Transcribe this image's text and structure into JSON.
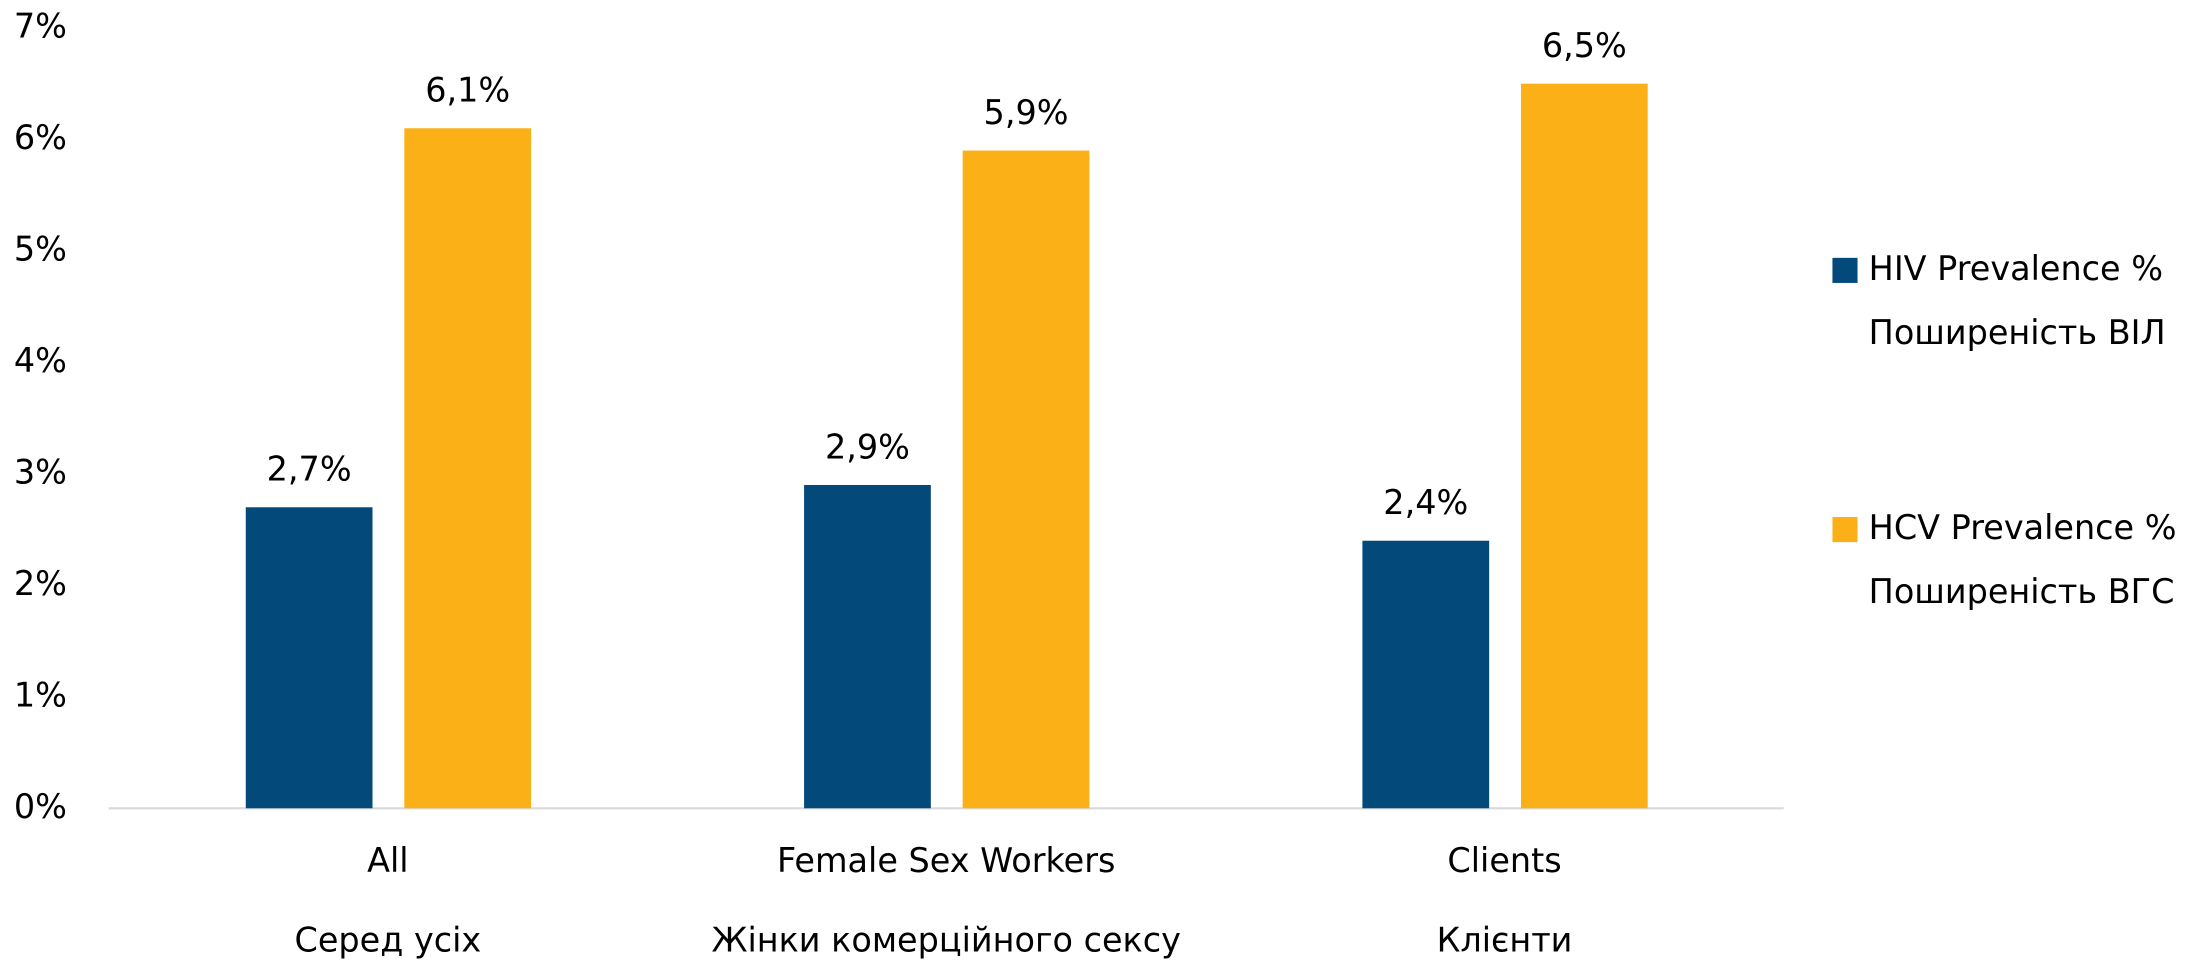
{
  "chart_data": {
    "type": "bar",
    "categories": [
      [
        "All",
        "Серед усіх"
      ],
      [
        "Female Sex Workers",
        "Жінки комерційного сексу"
      ],
      [
        "Clients",
        "Клієнти"
      ]
    ],
    "series": [
      {
        "name": [
          "HIV Prevalence %",
          "Поширеність ВІЛ"
        ],
        "color": "#03497a",
        "values": [
          2.7,
          2.9,
          2.4
        ],
        "value_labels": [
          "2,7%",
          "2,9%",
          "2,4%"
        ]
      },
      {
        "name": [
          "HCV Prevalence %",
          "Поширеність ВГС"
        ],
        "color": "#fbb017",
        "values": [
          6.1,
          5.9,
          6.5
        ],
        "value_labels": [
          "6,1%",
          "5,9%",
          "6,5%"
        ]
      }
    ],
    "ylim": [
      0,
      7
    ],
    "yticks": [
      {
        "value": 0,
        "label": "0%"
      },
      {
        "value": 1,
        "label": "1%"
      },
      {
        "value": 2,
        "label": "2%"
      },
      {
        "value": 3,
        "label": "3%"
      },
      {
        "value": 4,
        "label": "4%"
      },
      {
        "value": 5,
        "label": "5%"
      },
      {
        "value": 6,
        "label": "6%"
      },
      {
        "value": 7,
        "label": "7%"
      }
    ],
    "grid": false,
    "legend": "right"
  }
}
